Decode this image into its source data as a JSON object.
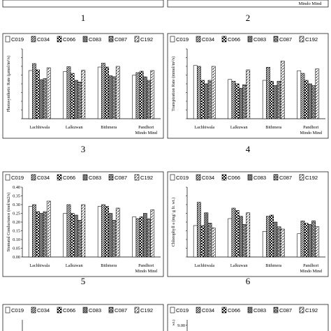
{
  "panel_numbers": [
    "1",
    "2",
    "3",
    "4",
    "5",
    "6"
  ],
  "top_crop": {
    "panel2_label": "Mindo Mind"
  },
  "legend_labels": [
    "C019",
    "C034",
    "C066",
    "C083",
    "C087",
    "C192"
  ],
  "series_patterns": [
    "plain",
    "diag-up",
    "check",
    "diag-dense",
    "brick",
    "dashes"
  ],
  "chart_data": [
    {
      "type": "bar",
      "panel": "3",
      "categories": [
        "Lachhiwala",
        "Lalkuwan",
        "Bithmera",
        "Pandhori\nMindo Mind"
      ],
      "ylabel": "Photosynthetic Rate (μmol/m²/s)",
      "ylim": [
        0,
        20
      ],
      "yticks": [],
      "series": [
        {
          "name": "C019",
          "values": [
            13.8,
            13.5,
            14.8,
            12.5
          ]
        },
        {
          "name": "C034",
          "values": [
            15.8,
            14.9,
            15.9,
            13.2
          ]
        },
        {
          "name": "C066",
          "values": [
            14.0,
            13.0,
            14.8,
            13.6
          ]
        },
        {
          "name": "C083",
          "values": [
            11.2,
            11.0,
            12.3,
            12.0
          ]
        },
        {
          "name": "C087",
          "values": [
            11.5,
            10.5,
            12.0,
            11.0
          ]
        },
        {
          "name": "C192",
          "values": [
            14.6,
            13.9,
            15.0,
            13.8
          ]
        }
      ]
    },
    {
      "type": "bar",
      "panel": "4",
      "categories": [
        "Lachhiwala",
        "Lalkuwan",
        "Bithmera",
        "Pandhori\nMindo Mind"
      ],
      "ylabel": "Transpiration Rate (mmol/m²/s)",
      "ylim": [
        0,
        8
      ],
      "yticks": [],
      "series": [
        {
          "name": "C019",
          "values": [
            6.1,
            4.5,
            4.4,
            5.5
          ]
        },
        {
          "name": "C034",
          "values": [
            6.0,
            4.3,
            5.9,
            5.2
          ]
        },
        {
          "name": "C066",
          "values": [
            4.4,
            4.0,
            4.3,
            4.4
          ]
        },
        {
          "name": "C083",
          "values": [
            4.0,
            3.5,
            3.8,
            4.0
          ]
        },
        {
          "name": "C087",
          "values": [
            4.4,
            3.9,
            4.3,
            3.8
          ]
        },
        {
          "name": "C192",
          "values": [
            6.0,
            5.6,
            6.6,
            5.7
          ]
        }
      ]
    },
    {
      "type": "bar",
      "panel": "5",
      "categories": [
        "Lachhiwala",
        "Lalkuwan",
        "Bithmera",
        "Pandhori\nMindo Mind"
      ],
      "ylabel": "Stomatal Conductance (mol/m2/s)",
      "ylim": [
        0,
        0.4
      ],
      "yticks": [
        "0.00",
        "0.05",
        "0.10",
        "0.15",
        "0.20",
        "0.25",
        "0.30",
        "0.35",
        "0.40"
      ],
      "series": [
        {
          "name": "C019",
          "values": [
            0.29,
            0.25,
            0.29,
            0.23
          ]
        },
        {
          "name": "C034",
          "values": [
            0.3,
            0.3,
            0.3,
            0.22
          ]
        },
        {
          "name": "C066",
          "values": [
            0.26,
            0.25,
            0.29,
            0.23
          ]
        },
        {
          "name": "C083",
          "values": [
            0.25,
            0.24,
            0.25,
            0.25
          ]
        },
        {
          "name": "C087",
          "values": [
            0.26,
            0.21,
            0.21,
            0.22
          ]
        },
        {
          "name": "C192",
          "values": [
            0.32,
            0.3,
            0.28,
            0.27
          ]
        }
      ]
    },
    {
      "type": "bar",
      "panel": "6",
      "categories": [
        "Lachhiwala",
        "Lalkuwan",
        "Bithmera",
        "Pandhori\nMindo Mind"
      ],
      "ylabel": "Chlorophyll a  (mg/ g fr. wt.)",
      "ylim": [
        0,
        6
      ],
      "yticks": [],
      "series": [
        {
          "name": "C019",
          "values": [
            2.7,
            3.3,
            2.2,
            2.0
          ]
        },
        {
          "name": "C034",
          "values": [
            4.7,
            4.2,
            3.5,
            3.1
          ]
        },
        {
          "name": "C066",
          "values": [
            2.7,
            4.0,
            3.6,
            2.9
          ]
        },
        {
          "name": "C083",
          "values": [
            3.8,
            3.5,
            3.0,
            2.8
          ]
        },
        {
          "name": "C087",
          "values": [
            2.9,
            2.8,
            2.6,
            3.1
          ]
        },
        {
          "name": "C192",
          "values": [
            2.5,
            3.8,
            2.4,
            2.6
          ]
        }
      ]
    },
    {
      "type": "bar",
      "panel": "7",
      "categories": [],
      "ylabel": "",
      "ylim": [
        0,
        10
      ],
      "yticks": [],
      "series": []
    },
    {
      "type": "bar",
      "panel": "8",
      "categories": [],
      "ylabel": "wt.)",
      "ylim": [
        0,
        10
      ],
      "yticks": [
        "9.00"
      ],
      "series": []
    }
  ]
}
